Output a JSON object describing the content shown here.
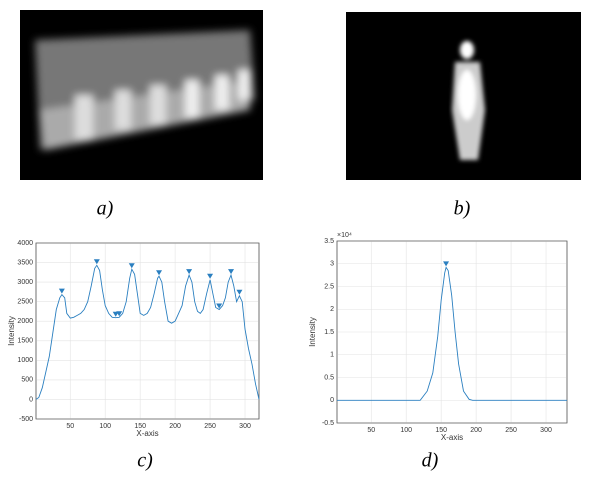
{
  "captions": [
    "a)",
    "b)",
    "c)",
    "d)"
  ],
  "chart_data": [
    {
      "type": "line",
      "xlabel": "X-axis",
      "ylabel": "Intensity",
      "xlim": [
        1,
        320
      ],
      "ylim": [
        -500,
        4000
      ],
      "xticks": [
        50,
        100,
        150,
        200,
        250,
        300
      ],
      "yticks": [
        -500,
        0,
        500,
        1000,
        1500,
        2000,
        2500,
        3000,
        3500,
        4000
      ],
      "grid": true,
      "series": [
        {
          "color": "#2a7fc0",
          "marker": "none",
          "x": [
            1,
            5,
            10,
            15,
            20,
            25,
            30,
            35,
            38,
            42,
            45,
            50,
            55,
            60,
            65,
            70,
            75,
            80,
            85,
            88,
            92,
            96,
            100,
            105,
            110,
            115,
            120,
            125,
            130,
            135,
            138,
            142,
            146,
            150,
            155,
            160,
            165,
            170,
            175,
            177,
            181,
            185,
            190,
            195,
            200,
            205,
            210,
            215,
            220,
            224,
            228,
            232,
            236,
            240,
            245,
            250,
            254,
            258,
            263,
            268,
            272,
            276,
            280,
            284,
            288,
            292,
            296,
            300,
            305,
            310,
            315,
            320
          ],
          "values": [
            0,
            50,
            300,
            700,
            1100,
            1700,
            2300,
            2600,
            2680,
            2600,
            2200,
            2080,
            2100,
            2150,
            2200,
            2300,
            2500,
            2900,
            3350,
            3430,
            3300,
            2800,
            2400,
            2200,
            2100,
            2090,
            2100,
            2200,
            2500,
            3100,
            3330,
            3200,
            2700,
            2200,
            2150,
            2200,
            2350,
            2700,
            3100,
            3150,
            3000,
            2500,
            2000,
            1950,
            2000,
            2200,
            2400,
            2900,
            3180,
            3000,
            2500,
            2250,
            2200,
            2300,
            2700,
            3060,
            2700,
            2350,
            2300,
            2400,
            2600,
            3000,
            3180,
            2900,
            2500,
            2650,
            2500,
            1800,
            1300,
            900,
            400,
            0
          ]
        },
        {
          "color": "#2a7fc0",
          "marker": "triangle-down",
          "x": [
            38,
            88,
            115,
            120,
            138,
            177,
            220,
            250,
            263,
            280,
            292
          ],
          "values": [
            2680,
            3430,
            2090,
            2100,
            3330,
            3150,
            3180,
            3060,
            2300,
            3180,
            2650
          ]
        }
      ]
    },
    {
      "type": "line",
      "xlabel": "X-axis",
      "ylabel": "Intensity",
      "y_exponent_label": "×10⁴",
      "xlim": [
        1,
        330
      ],
      "ylim": [
        -0.5,
        3.5
      ],
      "xticks": [
        50,
        100,
        150,
        200,
        250,
        300
      ],
      "yticks": [
        -0.5,
        0,
        0.5,
        1,
        1.5,
        2,
        2.5,
        3,
        3.5
      ],
      "grid": true,
      "series": [
        {
          "color": "#2a7fc0",
          "marker": "none",
          "x": [
            1,
            120,
            130,
            138,
            145,
            150,
            155,
            157,
            160,
            165,
            170,
            175,
            182,
            190,
            195,
            330
          ],
          "values": [
            0,
            0,
            0.2,
            0.6,
            1.4,
            2.2,
            2.8,
            2.92,
            2.85,
            2.3,
            1.5,
            0.8,
            0.2,
            0.02,
            0,
            0
          ]
        },
        {
          "color": "#2a7fc0",
          "marker": "triangle-down",
          "x": [
            157
          ],
          "values": [
            2.92
          ]
        }
      ]
    }
  ]
}
